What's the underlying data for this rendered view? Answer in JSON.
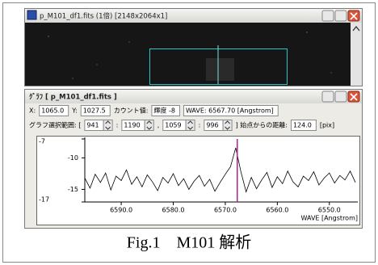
{
  "figure": {
    "caption": "Fig.1　M101 解析"
  },
  "image_window": {
    "title": "p_M101_df1.fits (1倍) [2148x2064x1]"
  },
  "graph_window": {
    "title": "ｸﾞﾗﾌ [ p_M101_df1.fits ]",
    "info_row": [
      {
        "label": "X:"
      },
      {
        "input": "1065.0"
      },
      {
        "label": "Y:"
      },
      {
        "input": "1027.5"
      },
      {
        "label": "カウント値:"
      },
      {
        "input": "輝度 -8"
      },
      {
        "input": "WAVE: 6567.70 [Angstrom]"
      }
    ],
    "range_row": [
      {
        "label": "グラフ選択範囲: ["
      },
      {
        "spin_input": "941"
      },
      {
        "label": ":"
      },
      {
        "spin_input": "1190"
      },
      {
        "label": ","
      },
      {
        "spin_input": "1059"
      },
      {
        "label": ":"
      },
      {
        "spin_input": "996"
      },
      {
        "label": "]  始点からの距離:"
      },
      {
        "input": "124.0"
      },
      {
        "label": "[pix]"
      }
    ]
  },
  "graph": {
    "type": "line",
    "color": "#000000",
    "cursor": 6567.7,
    "cursor_color": "#b0209a",
    "x_label": "WAVE [Angstrom]",
    "x": [
      6597,
      6596,
      6595,
      6594,
      6593,
      6592,
      6591,
      6590,
      6589,
      6588,
      6587,
      6586,
      6585,
      6584,
      6583,
      6582,
      6581,
      6580,
      6579,
      6578,
      6577,
      6576,
      6575,
      6574,
      6573,
      6572,
      6571,
      6570,
      6569,
      6568,
      6567,
      6566,
      6565,
      6564,
      6563,
      6562,
      6561,
      6560,
      6559,
      6558,
      6557,
      6556,
      6555,
      6554,
      6553,
      6552,
      6551,
      6550,
      6549,
      6548,
      6547,
      6546,
      6545
    ],
    "values": [
      -13.2,
      -14.8,
      -12.6,
      -13.9,
      -12.4,
      -15.1,
      -12.9,
      -13.6,
      -11.9,
      -14.2,
      -13.0,
      -14.6,
      -12.7,
      -13.8,
      -15.2,
      -13.1,
      -14.0,
      -12.5,
      -14.4,
      -13.3,
      -15.0,
      -13.7,
      -12.8,
      -14.5,
      -13.4,
      -15.3,
      -13.9,
      -12.6,
      -11.4,
      -8.4,
      -12.2,
      -15.4,
      -13.1,
      -14.9,
      -13.5,
      -12.3,
      -14.7,
      -13.0,
      -14.1,
      -12.1,
      -13.8,
      -14.6,
      -12.9,
      -13.6,
      -12.2,
      -14.3,
      -13.2,
      -12.4,
      -14.0,
      -12.8,
      -13.5,
      -12.1,
      -13.9
    ],
    "xlim": [
      6597,
      6545
    ],
    "ylim": [
      -17,
      -7
    ],
    "xticks": [
      {
        "value": 6590,
        "label": "6590.0"
      },
      {
        "value": 6580,
        "label": "6580.0"
      },
      {
        "value": 6570,
        "label": "6570.0"
      },
      {
        "value": 6560,
        "label": "6560.0"
      },
      {
        "value": 6550,
        "label": "6550.0"
      }
    ],
    "yticks": [
      -7,
      -10,
      -15,
      -17
    ]
  }
}
